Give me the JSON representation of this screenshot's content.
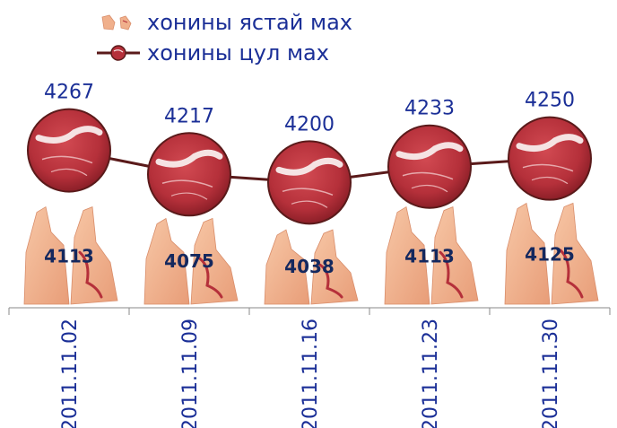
{
  "chart_data": {
    "type": "bar",
    "categories": [
      "2011.11.02",
      "2011.11.09",
      "2011.11.16",
      "2011.11.23",
      "2011.11.30"
    ],
    "series": [
      {
        "name": "хонины ястай мах",
        "kind": "bar",
        "values": [
          4113,
          4075,
          4038,
          4113,
          4125
        ]
      },
      {
        "name": "хонины цул мах",
        "kind": "line",
        "values": [
          4267,
          4217,
          4200,
          4233,
          4250
        ]
      }
    ],
    "colors": {
      "label": "#1b2f97",
      "bar_label": "#14285e",
      "line": "#5a1a1a",
      "meat": "#b5303a",
      "carcass": "#f0b08c",
      "axis": "#888888"
    },
    "grid": false,
    "legend_position": "top-left"
  }
}
